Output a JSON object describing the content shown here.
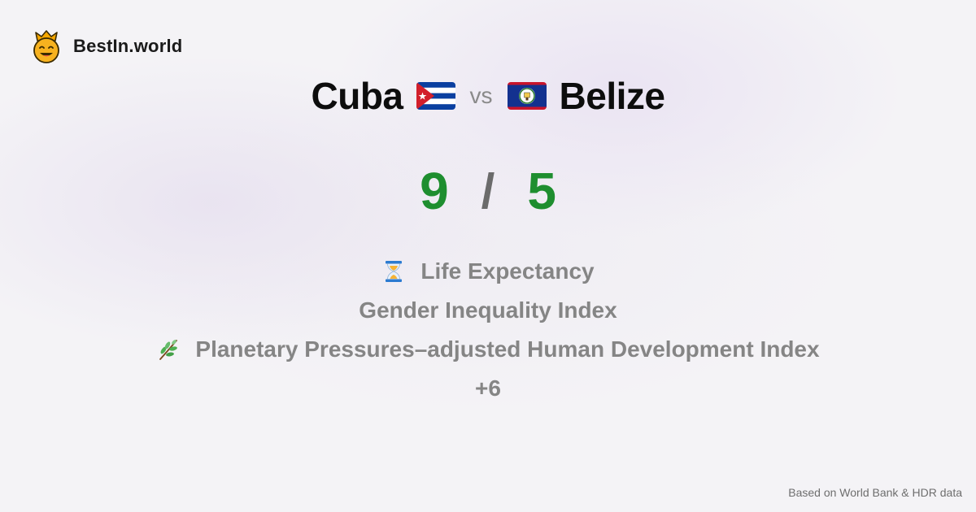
{
  "brand": {
    "name": "BestIn.world",
    "logo_icon": "smiling-crown-face-icon"
  },
  "comparison": {
    "left_country": "Cuba",
    "left_flag_icon": "cuba-flag-icon",
    "vs_label": "vs",
    "right_country": "Belize",
    "right_flag_icon": "belize-flag-icon"
  },
  "score": {
    "left": "9",
    "separator": "/",
    "right": "5",
    "color": "#1e8e2f"
  },
  "criteria": [
    {
      "icon": "hourglass-icon",
      "label": "Life Expectancy"
    },
    {
      "icon": "",
      "label": "Gender Inequality Index"
    },
    {
      "icon": "herb-icon",
      "label": "Planetary Pressures–adjusted Human Development Index"
    }
  ],
  "more_label": "+6",
  "footer": {
    "source": "Based on World Bank & HDR data"
  }
}
